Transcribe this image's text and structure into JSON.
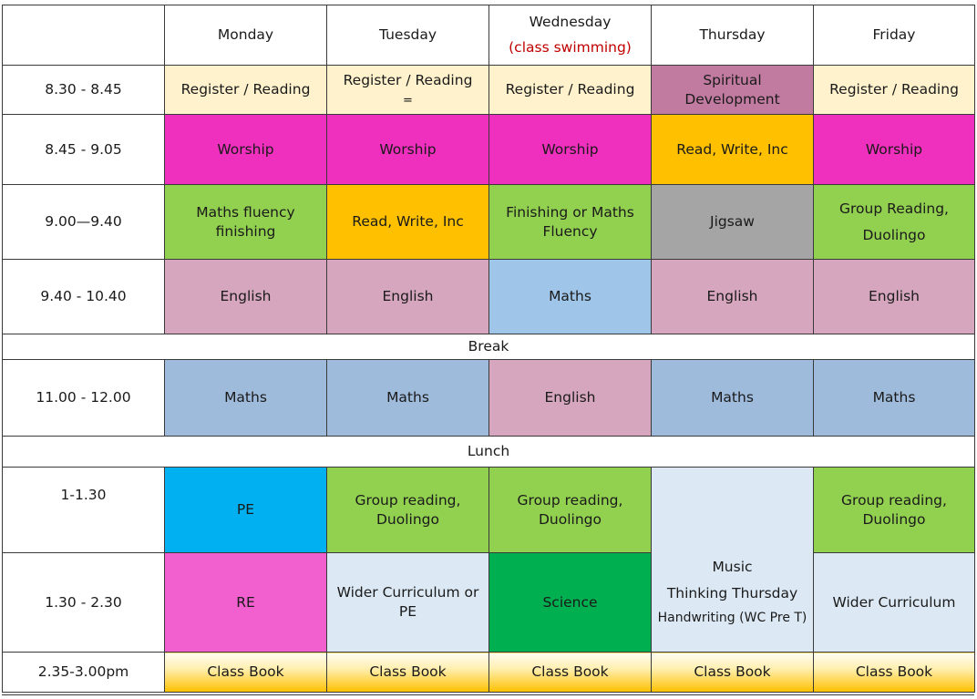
{
  "header": {
    "blank": "",
    "days": [
      "Monday",
      "Tuesday",
      "Wednesday",
      "Thursday",
      "Friday"
    ],
    "wednesday_note": "(class swimming)"
  },
  "colors": {
    "cream": "#fff2cc",
    "mauve": "#c27ba0",
    "magenta": "#ef2fbd",
    "orange": "#ffc000",
    "green": "#92d050",
    "grey": "#a5a5a5",
    "pink": "#d5a6bd",
    "light_blue": "#9fc5e8",
    "steel_blue": "#9fbbdb",
    "cyan": "#00b0f0",
    "pink_bright": "#f25fcf",
    "pale_blue": "#dce9f5",
    "dark_green": "#00b050",
    "gold": "#ffc000"
  },
  "rows": {
    "r1": {
      "time": "8.30 - 8.45",
      "mon": "Register / Reading",
      "tue": "Register / Reading",
      "tue_extra": "=",
      "wed": "Register / Reading",
      "thu": "Spiritual Development",
      "fri": "Register / Reading"
    },
    "r2": {
      "time": "8.45 - 9.05",
      "mon": "Worship",
      "tue": "Worship",
      "wed": "Worship",
      "thu": "Read, Write, Inc",
      "fri": "Worship"
    },
    "r3": {
      "time": "9.00—9.40",
      "mon": "Maths fluency finishing",
      "tue": "Read, Write, Inc",
      "wed": "Finishing or Maths Fluency",
      "thu": "Jigsaw",
      "fri_line1": "Group Reading,",
      "fri_line2": "Duolingo"
    },
    "r4": {
      "time": "9.40 - 10.40",
      "mon": "English",
      "tue": "English",
      "wed": "Maths",
      "thu": "English",
      "fri": "English"
    },
    "break": "Break",
    "r5": {
      "time": "11.00 - 12.00",
      "mon": "Maths",
      "tue": "Maths",
      "wed": "English",
      "thu": "Maths",
      "fri": "Maths"
    },
    "lunch": "Lunch",
    "r6": {
      "time": "1-1.30",
      "mon": "PE",
      "tue": "Group reading, Duolingo",
      "wed": "Group reading, Duolingo",
      "fri": "Group reading, Duolingo"
    },
    "thu_afternoon": {
      "line1": "Music",
      "line2": "Thinking Thursday",
      "line3": "Handwriting (WC Pre T)"
    },
    "r7": {
      "time": "1.30 - 2.30",
      "mon": "RE",
      "tue": "Wider Curriculum or PE",
      "wed": "Science",
      "fri": "Wider Curriculum"
    },
    "r8": {
      "time": "2.35-3.00pm",
      "mon": "Class Book",
      "tue": "Class Book",
      "wed": "Class Book",
      "thu": "Class Book",
      "fri": "Class Book"
    }
  }
}
